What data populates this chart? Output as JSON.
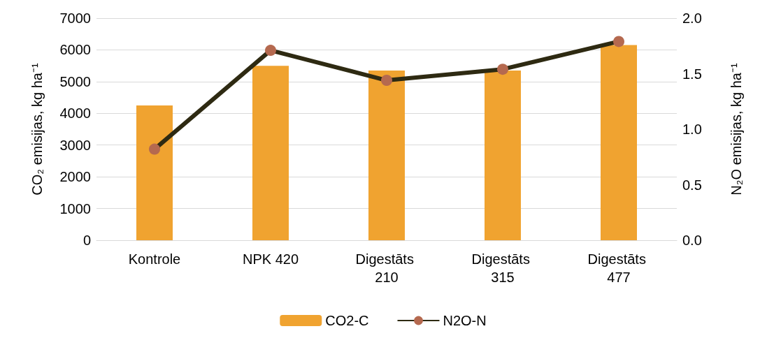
{
  "chart_data": {
    "type": "bar",
    "categories": [
      "Kontrole",
      "NPK 420",
      "Digestāts 210",
      "Digestāts 315",
      "Digestāts 477"
    ],
    "ylabel": "CO₂ emisijas, kg ha⁻¹",
    "y2label": "N₂O emisijas, kg ha⁻¹",
    "ylim": [
      0,
      7000
    ],
    "yticks": [
      0,
      1000,
      2000,
      3000,
      4000,
      5000,
      6000,
      7000
    ],
    "y2lim": [
      0,
      2.0
    ],
    "y2ticks": [
      {
        "value": 0,
        "label": "0.0"
      },
      {
        "value": 0.5,
        "label": "0.5"
      },
      {
        "value": 1,
        "label": "1.0"
      },
      {
        "value": 1.5,
        "label": "1.5"
      },
      {
        "value": 2,
        "label": "2.0"
      }
    ],
    "grid": "y",
    "legend": "bottom",
    "marker": "circle",
    "series": [
      {
        "name": "CO2-C",
        "color": "#f0a330",
        "values": [
          4250,
          5500,
          5350,
          5350,
          6150
        ]
      },
      {
        "name": "N2O-N",
        "type": "line",
        "axis": "y2",
        "color": "#2e2a12",
        "values": [
          0.82,
          1.71,
          1.44,
          1.54,
          1.79
        ]
      }
    ]
  }
}
